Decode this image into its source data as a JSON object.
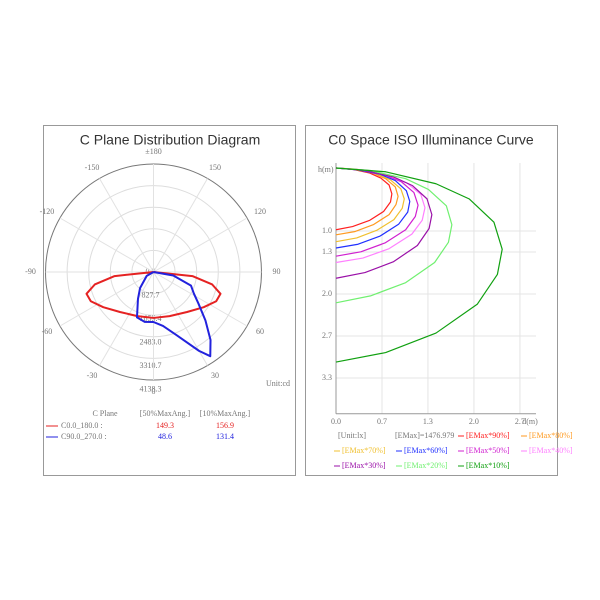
{
  "chart_data": [
    {
      "type": "polar",
      "title": "C Plane Distribution Diagram",
      "unit": "Unit:cd",
      "angle_ticks": [
        {
          "value": 180,
          "label": "±180"
        },
        -150,
        -120,
        -90,
        -60,
        -30,
        0,
        30,
        60,
        90,
        120,
        150
      ],
      "rlim": [
        0,
        4138.3
      ],
      "rticks": [
        {
          "value": 0,
          "label": "0.0"
        },
        827.7,
        1655.4,
        {
          "value": 2483,
          "label": "2483.0"
        },
        3310.7,
        4138.3
      ],
      "table_header": [
        "C Plane",
        "[50%MaxAng.]",
        "[10%MaxAng.]"
      ],
      "series": [
        {
          "name": "C0.0_180.0 :",
          "color": "#e52222",
          "max_ang_50": "149.3",
          "max_ang_10": "156.9",
          "angles": [
            -90,
            -84,
            -78,
            -72,
            -65,
            -55,
            -40,
            -20,
            0,
            20,
            40,
            55,
            65,
            72,
            78,
            84,
            90
          ],
          "values": [
            0,
            1500,
            2300,
            2700,
            2650,
            2350,
            2000,
            1800,
            1760,
            1800,
            2000,
            2350,
            2650,
            2700,
            2300,
            1500,
            0
          ]
        },
        {
          "name": "C90.0_270.0 :",
          "color": "#2222dd",
          "max_ang_50": "48.6",
          "max_ang_10": "131.4",
          "angles": [
            -90,
            -60,
            -40,
            -30,
            -20,
            -10,
            0,
            10,
            20,
            30,
            34,
            40,
            47,
            55,
            62,
            70,
            80,
            90
          ],
          "values": [
            0,
            300,
            800,
            1190,
            1850,
            1940,
            1916,
            2100,
            2570,
            3490,
            3890,
            3400,
            2720,
            2100,
            1750,
            1530,
            770,
            0
          ]
        }
      ]
    },
    {
      "type": "iso",
      "title": "C0 Space ISO Illuminance Curve",
      "xlabel": "d(m)",
      "ylabel": "h(m)",
      "xlim": [
        0,
        2.9
      ],
      "ylim": [
        0,
        3.9
      ],
      "grid": true,
      "xticks": [
        {
          "value": 0,
          "label": "0.0"
        },
        {
          "value": 0.667,
          "label": "0.7"
        },
        {
          "value": 1.333,
          "label": "1.3"
        },
        {
          "value": 2,
          "label": "2.0"
        },
        {
          "value": 2.667,
          "label": "2.7"
        }
      ],
      "yticks": [
        {
          "value": 1,
          "label": "1.0"
        },
        {
          "value": 1.333,
          "label": "1.3"
        },
        {
          "value": 2,
          "label": "2.0"
        },
        {
          "value": 2.667,
          "label": "2.7"
        },
        {
          "value": 3.333,
          "label": "3.3"
        }
      ],
      "unit": "[Unit:lx]",
      "emax": "[EMax]=1476.979",
      "series": [
        {
          "name": "[EMax*90%]",
          "color": "#ff2020",
          "x": [
            0,
            0.24,
            0.49,
            0.65,
            0.77,
            0.81,
            0.79,
            0.69,
            0.49,
            0.24,
            0
          ],
          "values": [
            0,
            0.02,
            0.08,
            0.16,
            0.27,
            0.41,
            0.54,
            0.69,
            0.83,
            0.93,
            0.98
          ]
        },
        {
          "name": "[EMax*80%]",
          "color": "#ff9a20",
          "x": [
            0,
            0.27,
            0.54,
            0.72,
            0.86,
            0.9,
            0.87,
            0.77,
            0.54,
            0.27,
            0
          ],
          "values": [
            0,
            0.02,
            0.08,
            0.17,
            0.3,
            0.45,
            0.58,
            0.74,
            0.9,
            1.01,
            1.06
          ]
        },
        {
          "name": "[EMax*70%]",
          "color": "#f0c030",
          "x": [
            0,
            0.3,
            0.59,
            0.79,
            0.94,
            0.99,
            0.96,
            0.84,
            0.59,
            0.3,
            0
          ],
          "values": [
            0,
            0.02,
            0.09,
            0.19,
            0.33,
            0.49,
            0.64,
            0.82,
            0.99,
            1.11,
            1.17
          ]
        },
        {
          "name": "[EMax*60%]",
          "color": "#2030ff",
          "x": [
            0,
            0.32,
            0.64,
            0.86,
            1.02,
            1.07,
            1.04,
            0.91,
            0.64,
            0.32,
            0
          ],
          "values": [
            0,
            0.03,
            0.1,
            0.2,
            0.36,
            0.53,
            0.7,
            0.89,
            1.08,
            1.21,
            1.27
          ]
        },
        {
          "name": "[EMax*50%]",
          "color": "#d020d0",
          "x": [
            0,
            0.36,
            0.71,
            0.95,
            1.13,
            1.19,
            1.15,
            1.01,
            0.71,
            0.36,
            0
          ],
          "values": [
            0,
            0.03,
            0.11,
            0.22,
            0.39,
            0.59,
            0.77,
            0.98,
            1.19,
            1.33,
            1.4
          ]
        },
        {
          "name": "[EMax*40%]",
          "color": "#ff80ff",
          "x": [
            0,
            0.39,
            0.77,
            1.03,
            1.23,
            1.29,
            1.25,
            1.1,
            0.77,
            0.39,
            0
          ],
          "values": [
            0,
            0.03,
            0.12,
            0.24,
            0.42,
            0.63,
            0.83,
            1.05,
            1.28,
            1.43,
            1.5
          ]
        },
        {
          "name": "[EMax*30%]",
          "color": "#9a10a8",
          "x": [
            0,
            0.42,
            0.83,
            1.11,
            1.32,
            1.39,
            1.35,
            1.18,
            0.83,
            0.42,
            0
          ],
          "values": [
            0,
            0.04,
            0.14,
            0.28,
            0.49,
            0.74,
            0.96,
            1.23,
            1.49,
            1.66,
            1.75
          ]
        },
        {
          "name": "[EMax*20%]",
          "color": "#70f070",
          "x": [
            0,
            0.5,
            1.01,
            1.34,
            1.6,
            1.68,
            1.63,
            1.43,
            1.01,
            0.5,
            0
          ],
          "values": [
            0,
            0.04,
            0.17,
            0.34,
            0.6,
            0.9,
            1.18,
            1.5,
            1.82,
            2.03,
            2.14
          ]
        },
        {
          "name": "[EMax*10%]",
          "color": "#10a010",
          "x": [
            0,
            0.72,
            1.45,
            1.93,
            2.29,
            2.41,
            2.34,
            2.05,
            1.45,
            0.72,
            0
          ],
          "values": [
            0,
            0.06,
            0.25,
            0.49,
            0.86,
            1.29,
            1.69,
            2.16,
            2.62,
            2.93,
            3.08
          ]
        }
      ]
    }
  ]
}
